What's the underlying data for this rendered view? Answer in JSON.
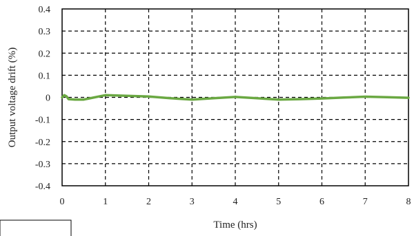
{
  "chart_data": {
    "type": "line",
    "title": "",
    "xlabel": "Time (hrs)",
    "ylabel": "Output voltage drift (%)",
    "xlim": [
      0,
      8
    ],
    "ylim": [
      -0.4,
      0.4
    ],
    "x_ticks": [
      "0",
      "1",
      "2",
      "3",
      "4",
      "5",
      "6",
      "7",
      "8"
    ],
    "y_ticks": [
      "0.4",
      "0.3",
      "0.2",
      "0.1",
      "0",
      "-0.1",
      "-0.2",
      "-0.3",
      "-0.4"
    ],
    "grid": "dashed",
    "legend": "none",
    "line_color": "#6aa842",
    "series": [
      {
        "x": [
          0,
          0.05,
          0.1,
          0.15,
          0.3,
          0.5,
          0.7,
          1.0,
          1.5,
          2.0,
          2.5,
          3.0,
          3.5,
          4.0,
          4.5,
          5.0,
          5.5,
          6.0,
          6.5,
          7.0,
          7.5,
          8.0
        ],
        "y": [
          0,
          0.01,
          0.005,
          -0.008,
          -0.01,
          -0.01,
          -0.002,
          0.01,
          0.007,
          0.004,
          -0.004,
          -0.01,
          -0.004,
          0.002,
          -0.004,
          -0.01,
          -0.008,
          -0.005,
          -0.001,
          0.003,
          0.001,
          -0.002
        ]
      }
    ]
  }
}
